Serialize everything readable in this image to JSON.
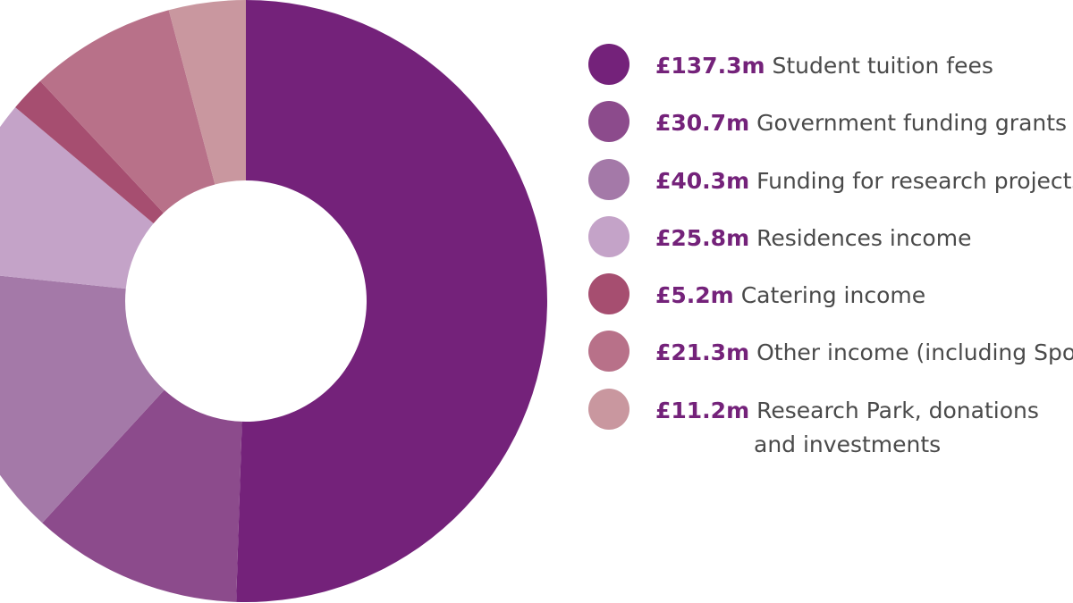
{
  "chart_data": {
    "type": "pie",
    "donut": true,
    "currency_unit": "£m",
    "slices": [
      {
        "amount": "£137.3m",
        "value": 137.3,
        "label": "Student tuition fees",
        "label_cont": "",
        "color": "#74227a"
      },
      {
        "amount": "£30.7m",
        "value": 30.7,
        "label": "Government funding grants",
        "label_cont": "",
        "color": "#8c4b8c"
      },
      {
        "amount": "£40.3m",
        "value": 40.3,
        "label": "Funding for research projects",
        "label_cont": "",
        "color": "#a479a8"
      },
      {
        "amount": "£25.8m",
        "value": 25.8,
        "label": "Residences income",
        "label_cont": "",
        "color": "#c4a3c8"
      },
      {
        "amount": "£5.2m",
        "value": 5.2,
        "label": "Catering income",
        "label_cont": "",
        "color": "#a64e70"
      },
      {
        "amount": "£21.3m",
        "value": 21.3,
        "label": "Other income (including Sports",
        "label_cont": "",
        "color": "#b87189"
      },
      {
        "amount": "£11.2m",
        "value": 11.2,
        "label": "Research Park, donations",
        "label_cont": "and investments",
        "color": "#c9979f"
      }
    ],
    "legend_position": "right"
  }
}
